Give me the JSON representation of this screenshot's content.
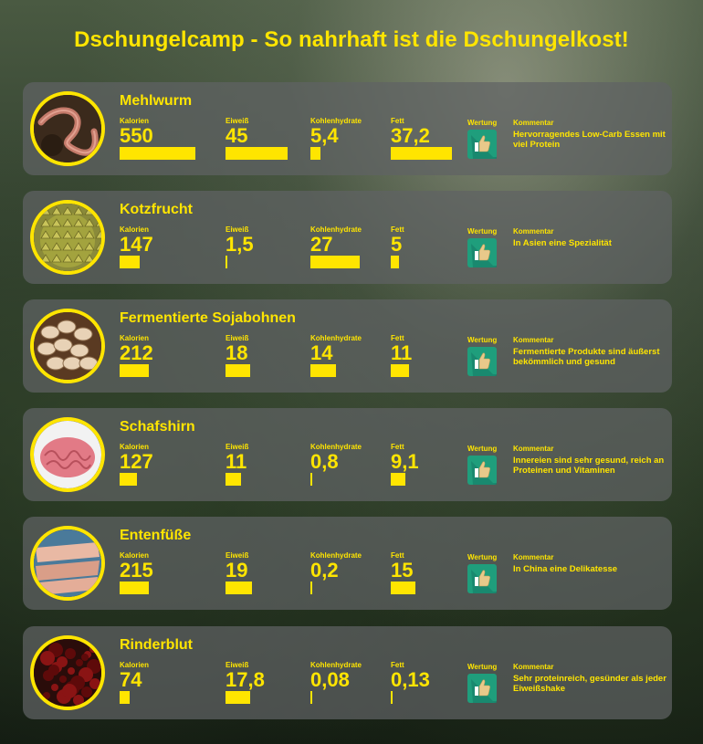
{
  "title": "Dschungelcamp - So nahrhaft ist die Dschungelkost!",
  "labels": {
    "kalorien": "Kalorien",
    "eiweiss": "Eiweiß",
    "kohlenhydrate": "Kohlenhydrate",
    "fett": "Fett",
    "wertung": "Wertung",
    "kommentar": "Kommentar"
  },
  "colors": {
    "accent": "#ffe500",
    "thumb": "#1f9e7c",
    "card": "#5f6264"
  },
  "items": [
    {
      "name": "Mehlwurm",
      "image_icon": "mealworm-image",
      "kalorien": "550",
      "eiweiss": "45",
      "kohlenhydrate": "5,4",
      "fett": "37,2",
      "bars": {
        "kalorien": 550,
        "eiweiss": 45,
        "kohlenhydrate": 5.4,
        "fett": 37.2
      },
      "wertung_icon": "thumbs-up-icon",
      "kommentar": "Hervorragendes Low-Carb Essen mit viel Protein"
    },
    {
      "name": "Kotzfrucht",
      "image_icon": "durian-image",
      "kalorien": "147",
      "eiweiss": "1,5",
      "kohlenhydrate": "27",
      "fett": "5",
      "bars": {
        "kalorien": 147,
        "eiweiss": 1.5,
        "kohlenhydrate": 27,
        "fett": 5
      },
      "wertung_icon": "thumbs-up-icon",
      "kommentar": "In Asien eine Spezialität"
    },
    {
      "name": "Fermentierte Sojabohnen",
      "image_icon": "soybeans-image",
      "kalorien": "212",
      "eiweiss": "18",
      "kohlenhydrate": "14",
      "fett": "11",
      "bars": {
        "kalorien": 212,
        "eiweiss": 18,
        "kohlenhydrate": 14,
        "fett": 11
      },
      "wertung_icon": "thumbs-up-icon",
      "kommentar": "Fermentierte Produkte sind äußerst bekömmlich und gesund"
    },
    {
      "name": "Schafshirn",
      "image_icon": "sheep-brain-image",
      "kalorien": "127",
      "eiweiss": "11",
      "kohlenhydrate": "0,8",
      "fett": "9,1",
      "bars": {
        "kalorien": 127,
        "eiweiss": 11,
        "kohlenhydrate": 0.8,
        "fett": 9.1
      },
      "wertung_icon": "thumbs-up-icon",
      "kommentar": "Innereien sind sehr gesund, reich an Proteinen und Vitaminen"
    },
    {
      "name": "Entenfüße",
      "image_icon": "duck-feet-image",
      "kalorien": "215",
      "eiweiss": "19",
      "kohlenhydrate": "0,2",
      "fett": "15",
      "bars": {
        "kalorien": 215,
        "eiweiss": 19,
        "kohlenhydrate": 0.2,
        "fett": 15
      },
      "wertung_icon": "thumbs-up-icon",
      "kommentar": "In China eine Delikatesse"
    },
    {
      "name": "Rinderblut",
      "image_icon": "cattle-blood-image",
      "kalorien": "74",
      "eiweiss": "17,8",
      "kohlenhydrate": "0,08",
      "fett": "0,13",
      "bars": {
        "kalorien": 74,
        "eiweiss": 17.8,
        "kohlenhydrate": 0.08,
        "fett": 0.13
      },
      "wertung_icon": "thumbs-up-icon",
      "kommentar": "Sehr proteinreich, gesünder als jeder Eiweißshake"
    }
  ]
}
